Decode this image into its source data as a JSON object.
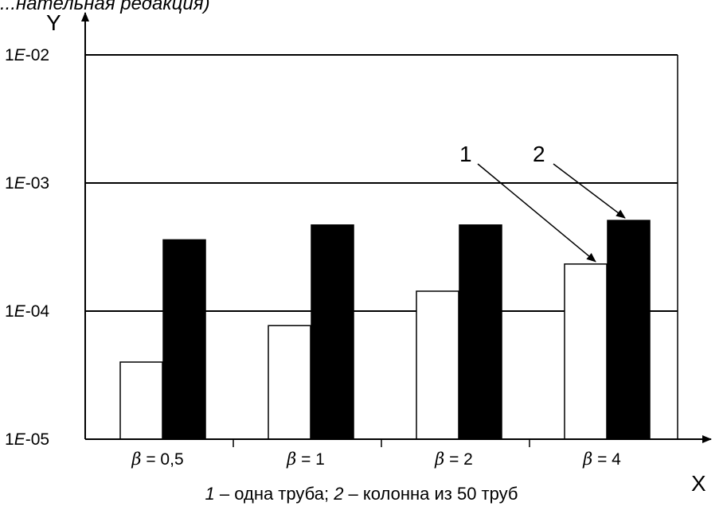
{
  "header": {
    "text": "...нательная редакция)"
  },
  "caption": {
    "n1": "1",
    "t1": " – одна труба; ",
    "n2": "2",
    "t2": " – колонна из 50 труб"
  },
  "colors": {
    "series_1_fill": "#ffffff",
    "series_2_fill": "#000000",
    "axis": "#000000"
  },
  "chart_data": {
    "type": "bar",
    "title": "",
    "xlabel": "X",
    "ylabel": "Y",
    "yscale": "log",
    "ylim": [
      1e-05,
      0.01
    ],
    "grid": "horizontal at decades",
    "y_ticks": [
      {
        "value": 1e-05,
        "mant": "1",
        "e": "E",
        "exp": "-05"
      },
      {
        "value": 0.0001,
        "mant": "1",
        "e": "E",
        "exp": "-04"
      },
      {
        "value": 0.001,
        "mant": "1",
        "e": "E",
        "exp": "-03"
      },
      {
        "value": 0.01,
        "mant": "1",
        "e": "E",
        "exp": "-02"
      }
    ],
    "categories": [
      {
        "sym": "β",
        "rest": " = 0,5"
      },
      {
        "sym": "β",
        "rest": " = 1"
      },
      {
        "sym": "β",
        "rest": " = 2"
      },
      {
        "sym": "β",
        "rest": " = 4"
      }
    ],
    "series": [
      {
        "name": "1",
        "values": [
          4e-05,
          7.7e-05,
          0.000143,
          0.000233
        ]
      },
      {
        "name": "2",
        "values": [
          0.00036,
          0.00047,
          0.00047,
          0.00051
        ]
      }
    ],
    "annotations": [
      {
        "label": "1",
        "points_to": {
          "series": 0,
          "category": 3
        }
      },
      {
        "label": "2",
        "points_to": {
          "series": 1,
          "category": 3
        }
      }
    ]
  }
}
